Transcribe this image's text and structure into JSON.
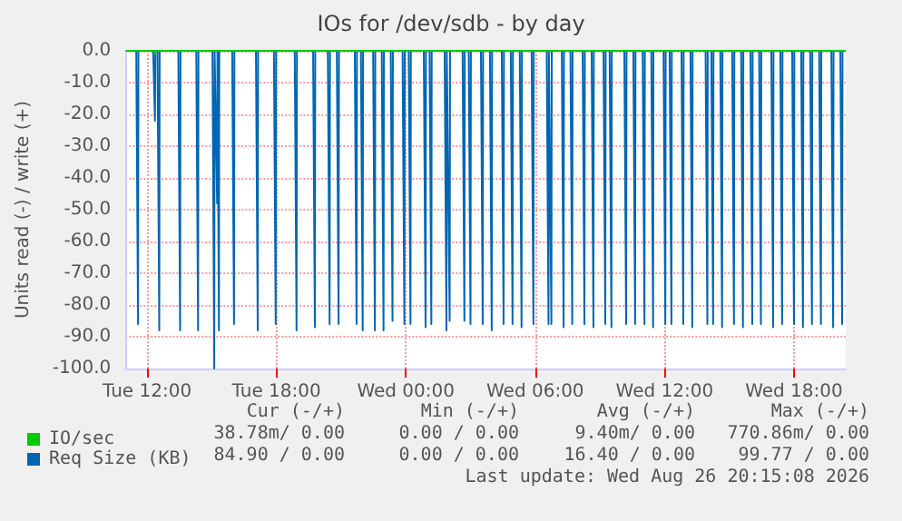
{
  "chart_data": {
    "type": "line",
    "title": "IOs for /dev/sdb - by day",
    "ylabel": "Units read (-) / write (+)",
    "xlim": [
      "2026-08-25T11:00",
      "2026-08-26T20:24"
    ],
    "ylim": [
      -100,
      0
    ],
    "xticks": [
      {
        "value": "2026-08-25T12:00",
        "label": "Tue 12:00"
      },
      {
        "value": "2026-08-25T18:00",
        "label": "Tue 18:00"
      },
      {
        "value": "2026-08-26T00:00",
        "label": "Wed 00:00"
      },
      {
        "value": "2026-08-26T06:00",
        "label": "Wed 06:00"
      },
      {
        "value": "2026-08-26T12:00",
        "label": "Wed 12:00"
      },
      {
        "value": "2026-08-26T18:00",
        "label": "Wed 18:00"
      }
    ],
    "yticks": [
      {
        "value": -100,
        "label": "-100.0"
      },
      {
        "value": -90,
        "label": "-90.0"
      },
      {
        "value": -80,
        "label": "-80.0"
      },
      {
        "value": -70,
        "label": "-70.0"
      },
      {
        "value": -60,
        "label": "-60.0"
      },
      {
        "value": -50,
        "label": "-50.0"
      },
      {
        "value": -40,
        "label": "-40.0"
      },
      {
        "value": -30,
        "label": "-30.0"
      },
      {
        "value": -20,
        "label": "-20.0"
      },
      {
        "value": -10,
        "label": "-10.0"
      },
      {
        "value": 0,
        "label": "0.0"
      }
    ],
    "grid": true,
    "legend": "bottom left",
    "marker": "none",
    "line_style": "solid",
    "series": [
      {
        "name": "IO/sec",
        "color": "#00cc00",
        "x": [
          "2026-08-25T11:00",
          "2026-08-25T12:19",
          "2026-08-25T12:22",
          "2026-08-25T12:25",
          "2026-08-26T20:24"
        ],
        "values": [
          0,
          0,
          -1,
          0,
          0
        ]
      },
      {
        "name": "Req Size (KB)",
        "color": "#0066b3",
        "x": [
          "2026-08-25T11:30",
          "2026-08-25T11:35",
          "2026-08-25T11:36",
          "2026-08-25T12:17",
          "2026-08-25T12:22",
          "2026-08-25T12:23",
          "2026-08-25T12:29",
          "2026-08-25T12:34",
          "2026-08-25T12:35",
          "2026-08-25T13:27",
          "2026-08-25T13:32",
          "2026-08-25T13:33",
          "2026-08-25T14:17",
          "2026-08-25T14:22",
          "2026-08-25T14:23",
          "2026-08-25T15:02",
          "2026-08-25T15:07",
          "2026-08-25T15:08",
          "2026-08-25T15:10",
          "2026-08-25T15:15",
          "2026-08-25T15:16",
          "2026-08-25T15:17",
          "2026-08-25T15:20",
          "2026-08-25T15:21",
          "2026-08-25T15:57",
          "2026-08-25T16:02",
          "2026-08-25T16:03",
          "2026-08-25T17:03",
          "2026-08-25T17:08",
          "2026-08-25T17:09",
          "2026-08-25T17:53",
          "2026-08-25T17:58",
          "2026-08-25T17:59",
          "2026-08-25T18:51",
          "2026-08-25T18:56",
          "2026-08-25T18:57",
          "2026-08-25T19:42",
          "2026-08-25T19:47",
          "2026-08-25T19:48",
          "2026-08-25T20:23",
          "2026-08-25T20:28",
          "2026-08-25T20:29",
          "2026-08-25T20:48",
          "2026-08-25T20:53",
          "2026-08-25T20:54",
          "2026-08-25T21:38",
          "2026-08-25T21:43",
          "2026-08-25T21:44",
          "2026-08-25T21:55",
          "2026-08-25T22:00",
          "2026-08-25T22:01",
          "2026-08-25T22:29",
          "2026-08-25T22:34",
          "2026-08-25T22:35",
          "2026-08-25T22:53",
          "2026-08-25T22:58",
          "2026-08-25T22:59",
          "2026-08-25T23:18",
          "2026-08-25T23:23",
          "2026-08-25T23:24",
          "2026-08-25T23:51",
          "2026-08-25T23:56",
          "2026-08-25T23:57",
          "2026-08-26T00:08",
          "2026-08-26T00:13",
          "2026-08-26T00:14",
          "2026-08-26T00:50",
          "2026-08-26T00:55",
          "2026-08-26T00:56",
          "2026-08-26T01:06",
          "2026-08-26T01:11",
          "2026-08-26T01:12",
          "2026-08-26T01:48",
          "2026-08-26T01:53",
          "2026-08-26T01:54",
          "2026-08-26T01:57",
          "2026-08-26T02:02",
          "2026-08-26T02:03",
          "2026-08-26T02:38",
          "2026-08-26T02:43",
          "2026-08-26T02:44",
          "2026-08-26T02:55",
          "2026-08-26T03:00",
          "2026-08-26T03:01",
          "2026-08-26T03:29",
          "2026-08-26T03:34",
          "2026-08-26T03:35",
          "2026-08-26T03:54",
          "2026-08-26T03:59",
          "2026-08-26T04:00",
          "2026-08-26T04:27",
          "2026-08-26T04:32",
          "2026-08-26T04:33",
          "2026-08-26T04:52",
          "2026-08-26T04:57",
          "2026-08-26T04:58",
          "2026-08-26T05:17",
          "2026-08-26T05:22",
          "2026-08-26T05:23",
          "2026-08-26T05:50",
          "2026-08-26T05:55",
          "2026-08-26T05:56",
          "2026-08-26T06:32",
          "2026-08-26T06:37",
          "2026-08-26T06:38",
          "2026-08-26T06:40",
          "2026-08-26T06:45",
          "2026-08-26T06:46",
          "2026-08-26T07:14",
          "2026-08-26T07:19",
          "2026-08-26T07:20",
          "2026-08-26T07:38",
          "2026-08-26T07:43",
          "2026-08-26T07:44",
          "2026-08-26T08:12",
          "2026-08-26T08:17",
          "2026-08-26T08:18",
          "2026-08-26T08:37",
          "2026-08-26T08:42",
          "2026-08-26T08:43",
          "2026-08-26T09:10",
          "2026-08-26T09:15",
          "2026-08-26T09:16",
          "2026-08-26T09:27",
          "2026-08-26T09:32",
          "2026-08-26T09:33",
          "2026-08-26T10:08",
          "2026-08-26T10:13",
          "2026-08-26T10:14",
          "2026-08-26T10:33",
          "2026-08-26T10:38",
          "2026-08-26T10:39",
          "2026-08-26T10:59",
          "2026-08-26T11:04",
          "2026-08-26T11:05",
          "2026-08-26T11:23",
          "2026-08-26T11:28",
          "2026-08-26T11:29",
          "2026-08-26T11:57",
          "2026-08-26T12:02",
          "2026-08-26T12:03",
          "2026-08-26T12:14",
          "2026-08-26T12:19",
          "2026-08-26T12:20",
          "2026-08-26T12:47",
          "2026-08-26T12:52",
          "2026-08-26T12:53",
          "2026-08-26T13:12",
          "2026-08-26T13:17",
          "2026-08-26T13:18",
          "2026-08-26T13:54",
          "2026-08-26T13:59",
          "2026-08-26T14:00",
          "2026-08-26T14:10",
          "2026-08-26T14:15",
          "2026-08-26T14:16",
          "2026-08-26T14:35",
          "2026-08-26T14:40",
          "2026-08-26T14:41",
          "2026-08-26T15:08",
          "2026-08-26T15:13",
          "2026-08-26T15:14",
          "2026-08-26T15:33",
          "2026-08-26T15:38",
          "2026-08-26T15:39",
          "2026-08-26T15:59",
          "2026-08-26T16:04",
          "2026-08-26T16:05",
          "2026-08-26T16:23",
          "2026-08-26T16:28",
          "2026-08-26T16:29",
          "2026-08-26T16:57",
          "2026-08-26T17:02",
          "2026-08-26T17:03",
          "2026-08-26T17:22",
          "2026-08-26T17:27",
          "2026-08-26T17:28",
          "2026-08-26T17:55",
          "2026-08-26T18:00",
          "2026-08-26T18:01",
          "2026-08-26T18:20",
          "2026-08-26T18:25",
          "2026-08-26T18:26",
          "2026-08-26T18:45",
          "2026-08-26T18:50",
          "2026-08-26T18:51",
          "2026-08-26T19:10",
          "2026-08-26T19:15",
          "2026-08-26T19:16",
          "2026-08-26T19:44",
          "2026-08-26T19:49",
          "2026-08-26T19:50",
          "2026-08-26T20:09",
          "2026-08-26T20:14",
          "2026-08-26T20:15"
        ],
        "values": [
          0,
          -86,
          0,
          0,
          -22,
          0,
          0,
          -88,
          0,
          0,
          -88,
          0,
          0,
          -88,
          0,
          0,
          -100,
          0,
          0,
          -48,
          0,
          0,
          -88,
          0,
          0,
          -86,
          0,
          0,
          -88,
          0,
          0,
          -86,
          0,
          0,
          -88,
          0,
          0,
          -87,
          0,
          0,
          -86,
          0,
          0,
          -86,
          0,
          0,
          -86,
          0,
          0,
          -88,
          0,
          0,
          -88,
          0,
          0,
          -88,
          0,
          0,
          -85,
          0,
          0,
          -86,
          0,
          0,
          -86,
          0,
          0,
          -87,
          0,
          0,
          -86,
          0,
          0,
          -88,
          0,
          0,
          -85,
          0,
          0,
          -85,
          0,
          0,
          -86,
          0,
          0,
          -86,
          0,
          0,
          -88,
          0,
          0,
          -86,
          0,
          0,
          -86,
          0,
          0,
          -87,
          0,
          0,
          -86,
          0,
          0,
          -86,
          0,
          0,
          -86,
          0,
          0,
          -87,
          0,
          0,
          -86,
          0,
          0,
          -86,
          0,
          0,
          -87,
          0,
          0,
          -86,
          0,
          0,
          -87,
          0,
          0,
          -86,
          0,
          0,
          -86,
          0,
          0,
          -86,
          0,
          0,
          -87,
          0,
          0,
          -86,
          0,
          0,
          -86,
          0,
          0,
          -86,
          0,
          0,
          -87,
          0,
          0,
          -86,
          0,
          0,
          -86,
          0,
          0,
          -87,
          0,
          0,
          -86,
          0,
          0,
          -87,
          0,
          0,
          -86,
          0,
          0,
          -86,
          0,
          0,
          -87,
          0,
          0,
          -86,
          0,
          0,
          -86,
          0,
          0,
          -87,
          0,
          0,
          -86,
          0,
          0,
          -86,
          0,
          0,
          -87,
          0,
          0,
          -86,
          0
        ]
      }
    ],
    "annotations": [
      "Cur (-/+)",
      "Min (-/+)",
      "Avg (-/+)",
      "Max (-/+)",
      "38.78m/ 0.00",
      "0.00 / 0.00",
      "9.40m/ 0.00",
      "770.86m/ 0.00",
      "84.90 / 0.00",
      "0.00 / 0.00",
      "16.40 / 0.00",
      "99.77 / 0.00",
      "Last update: Wed Aug 26 20:15:08 2026"
    ]
  }
}
